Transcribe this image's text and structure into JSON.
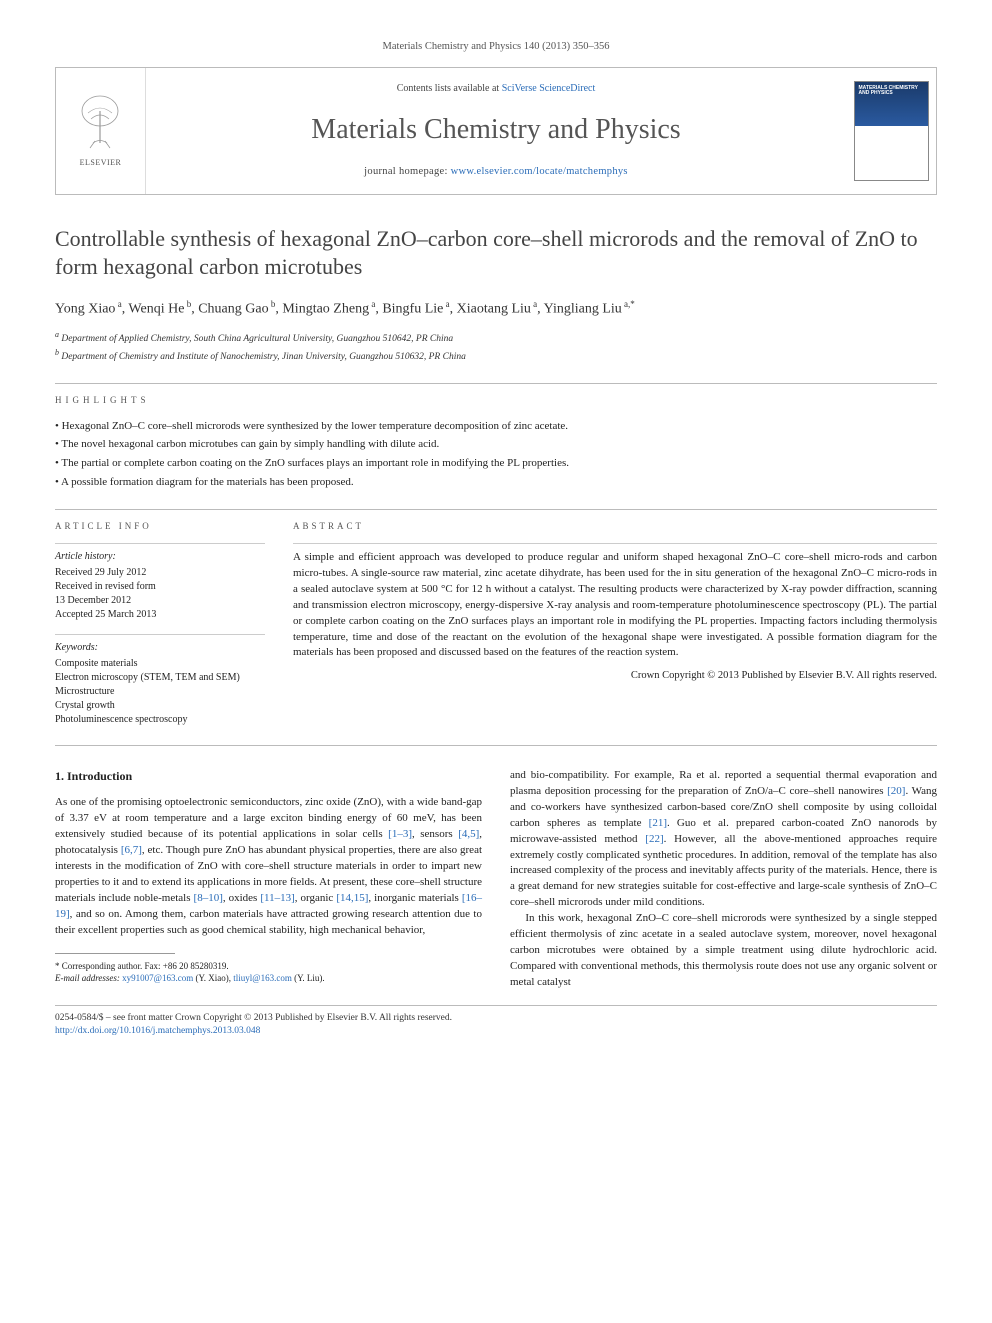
{
  "header": {
    "citation": "Materials Chemistry and Physics 140 (2013) 350–356"
  },
  "masthead": {
    "elsevier_label": "ELSEVIER",
    "contents_prefix": "Contents lists available at ",
    "contents_link": "SciVerse ScienceDirect",
    "journal_title": "Materials Chemistry and Physics",
    "homepage_prefix": "journal homepage: ",
    "homepage_link": "www.elsevier.com/locate/matchemphys",
    "cover_title": "MATERIALS CHEMISTRY AND PHYSICS"
  },
  "article": {
    "title": "Controllable synthesis of hexagonal ZnO–carbon core–shell microrods and the removal of ZnO to form hexagonal carbon microtubes",
    "authors_html": "Yong Xiao<sup> a</sup>, Wenqi He<sup> b</sup>, Chuang Gao<sup> b</sup>, Mingtao Zheng<sup> a</sup>, Bingfu Lie<sup> a</sup>, Xiaotang Liu<sup> a</sup>, Yingliang Liu<sup> a,*</sup>",
    "affiliations": [
      {
        "marker": "a",
        "text": "Department of Applied Chemistry, South China Agricultural University, Guangzhou 510642, PR China"
      },
      {
        "marker": "b",
        "text": "Department of Chemistry and Institute of Nanochemistry, Jinan University, Guangzhou 510632, PR China"
      }
    ]
  },
  "highlights": {
    "label": "HIGHLIGHTS",
    "items": [
      "Hexagonal ZnO–C core–shell microrods were synthesized by the lower temperature decomposition of zinc acetate.",
      "The novel hexagonal carbon microtubes can gain by simply handling with dilute acid.",
      "The partial or complete carbon coating on the ZnO surfaces plays an important role in modifying the PL properties.",
      "A possible formation diagram for the materials has been proposed."
    ]
  },
  "article_info": {
    "label": "ARTICLE INFO",
    "history_head": "Article history:",
    "history": [
      "Received 29 July 2012",
      "Received in revised form",
      "13 December 2012",
      "Accepted 25 March 2013"
    ],
    "keywords_head": "Keywords:",
    "keywords": [
      "Composite materials",
      "Electron microscopy (STEM, TEM and SEM)",
      "Microstructure",
      "Crystal growth",
      "Photoluminescence spectroscopy"
    ]
  },
  "abstract": {
    "label": "ABSTRACT",
    "body": "A simple and efficient approach was developed to produce regular and uniform shaped hexagonal ZnO–C core–shell micro-rods and carbon micro-tubes. A single-source raw material, zinc acetate dihydrate, has been used for the in situ generation of the hexagonal ZnO–C micro-rods in a sealed autoclave system at 500 °C for 12 h without a catalyst. The resulting products were characterized by X-ray powder diffraction, scanning and transmission electron microscopy, energy-dispersive X-ray analysis and room-temperature photoluminescence spectroscopy (PL). The partial or complete carbon coating on the ZnO surfaces plays an important role in modifying the PL properties. Impacting factors including thermolysis temperature, time and dose of the reactant on the evolution of the hexagonal shape were investigated. A possible formation diagram for the materials has been proposed and discussed based on the features of the reaction system.",
    "copyright": "Crown Copyright © 2013 Published by Elsevier B.V. All rights reserved."
  },
  "body": {
    "section_heading": "1. Introduction",
    "col1_p1": "As one of the promising optoelectronic semiconductors, zinc oxide (ZnO), with a wide band-gap of 3.37 eV at room temperature and a large exciton binding energy of 60 meV, has been extensively studied because of its potential applications in solar cells [1–3], sensors [4,5], photocatalysis [6,7], etc. Though pure ZnO has abundant physical properties, there are also great interests in the modification of ZnO with core–shell structure materials in order to impart new properties to it and to extend its applications in more fields. At present, these core–shell structure materials include noble-metals [8–10], oxides [11–13], organic [14,15], inorganic materials [16–19], and so on. Among them, carbon materials have attracted growing research attention due to their excellent properties such as good chemical stability, high mechanical behavior,",
    "col2_p1": "and bio-compatibility. For example, Ra et al. reported a sequential thermal evaporation and plasma deposition processing for the preparation of ZnO/a–C core–shell nanowires [20]. Wang and co-workers have synthesized carbon-based core/ZnO shell composite by using colloidal carbon spheres as template [21]. Guo et al. prepared carbon-coated ZnO nanorods by microwave-assisted method [22]. However, all the above-mentioned approaches require extremely costly complicated synthetic procedures. In addition, removal of the template has also increased complexity of the process and inevitably affects purity of the materials. Hence, there is a great demand for new strategies suitable for cost-effective and large-scale synthesis of ZnO–C core–shell microrods under mild conditions.",
    "col2_p2": "In this work, hexagonal ZnO–C core–shell microrods were synthesized by a single stepped efficient thermolysis of zinc acetate in a sealed autoclave system, moreover, novel hexagonal carbon microtubes were obtained by a simple treatment using dilute hydrochloric acid. Compared with conventional methods, this thermolysis route does not use any organic solvent or metal catalyst"
  },
  "footnotes": {
    "corr": "* Corresponding author. Fax: +86 20 85280319.",
    "emails_label": "E-mail addresses: ",
    "email1": "xy91007@163.com",
    "email1_owner": " (Y. Xiao), ",
    "email2": "tliuyl@163.com",
    "email2_owner": " (Y. Liu)."
  },
  "footer": {
    "line1": "0254-0584/$ – see front matter Crown Copyright © 2013 Published by Elsevier B.V. All rights reserved.",
    "doi": "http://dx.doi.org/10.1016/j.matchemphys.2013.03.048"
  },
  "refs": {
    "r1_3": "[1–3]",
    "r4_5": "[4,5]",
    "r6_7": "[6,7]",
    "r8_10": "[8–10]",
    "r11_13": "[11–13]",
    "r14_15": "[14,15]",
    "r16_19": "[16–19]",
    "r20": "[20]",
    "r21": "[21]",
    "r22": "[22]"
  }
}
